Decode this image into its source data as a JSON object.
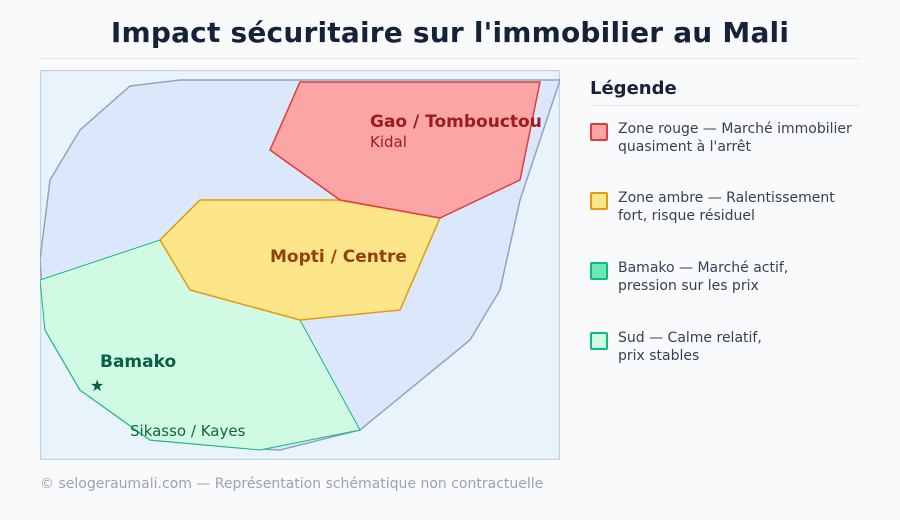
{
  "title": "Impact sécuritaire sur l'immobilier au Mali",
  "map": {
    "background_color": "#e8f3fc",
    "country_fill": "#dbe8fb",
    "country_stroke": "#94a3b8",
    "zones": [
      {
        "id": "rouge",
        "fill": "#fca5a5",
        "stroke": "#e23b3b"
      },
      {
        "id": "ambre",
        "fill": "#fde58a",
        "stroke": "#e69a0c"
      },
      {
        "id": "sud",
        "fill": "#d1fae5",
        "stroke": "#10b981"
      }
    ],
    "labels": {
      "gao": "Gao / Tombouctou",
      "kidal": "Kidal",
      "mopti": "Mopti / Centre",
      "bamako": "Bamako",
      "star": "★",
      "sikasso": "Sikasso / Kayes"
    },
    "label_colors": {
      "gao": "#9b1c1c",
      "mopti": "#92400e",
      "bamako": "#065f46",
      "sikasso": "#166534"
    }
  },
  "legend": {
    "title": "Légende",
    "items": [
      {
        "line1": "Zone rouge — Marché immobilier",
        "line2": "quasiment à l'arrêt",
        "fill": "#fca5a5",
        "stroke": "#e23b3b"
      },
      {
        "line1": "Zone ambre — Ralentissement",
        "line2": "fort, risque résiduel",
        "fill": "#fde68a",
        "stroke": "#e69a0c"
      },
      {
        "line1": "Bamako — Marché actif,",
        "line2": "pression sur les prix",
        "fill": "#6ee7b7",
        "stroke": "#10b981"
      },
      {
        "line1": "Sud — Calme relatif,",
        "line2": "prix stables",
        "fill": "#d1fae5",
        "stroke": "#10b981"
      }
    ]
  },
  "footer": "© selogeraumali.com — Représentation schématique non contractuelle"
}
